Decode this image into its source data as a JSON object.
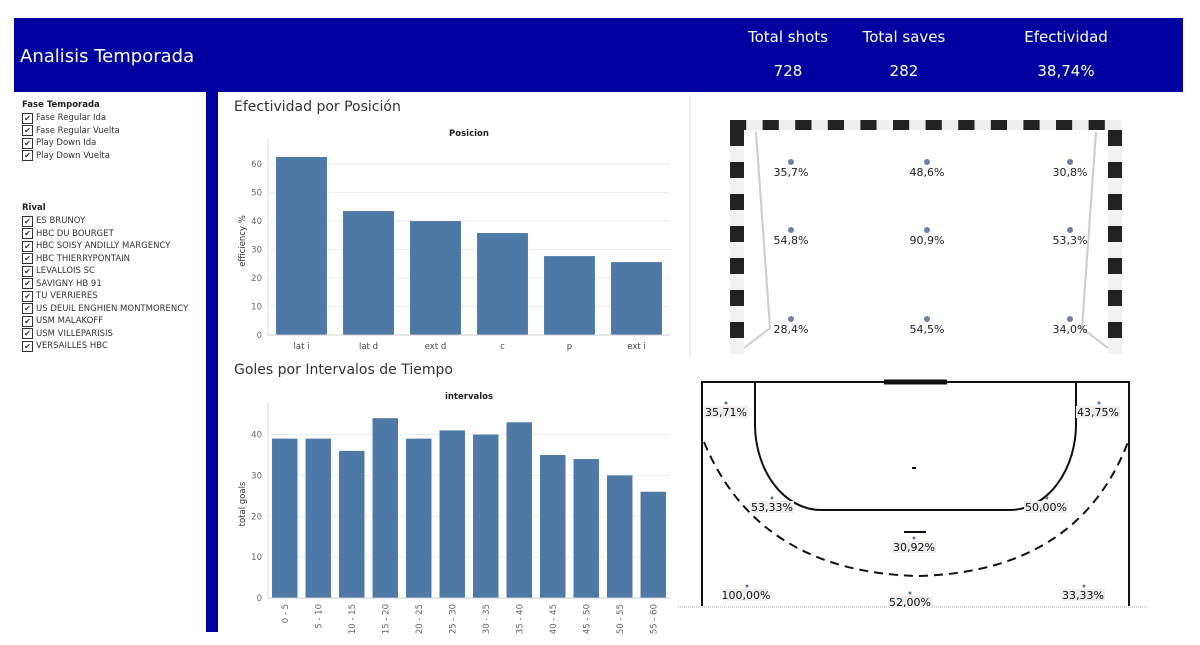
{
  "header": {
    "title": "Analisis Temporada",
    "kpis": [
      {
        "label": "Total shots",
        "value": "728"
      },
      {
        "label": "Total saves",
        "value": "282"
      },
      {
        "label": "Efectividad",
        "value": "38,74%"
      }
    ]
  },
  "filters": [
    {
      "title": "Fase Temporada",
      "items": [
        "Fase Regular Ida",
        "Fase Regular Vuelta",
        "Play Down Ida",
        "Play Down Vuelta"
      ]
    },
    {
      "title": "Rival",
      "items": [
        "ES BRUNOY",
        "HBC DU BOURGET",
        "HBC SOISY  ANDILLY  MARGENCY",
        "HBC THIERRYPONTAIN",
        "LEVALLOIS SC",
        "SAVIGNY HB 91",
        "TU VERRIERES",
        "US DEUIL ENGHIEN MONTMORENCY",
        "USM MALAKOFF",
        "USM VILLEPARISIS",
        "VERSAILLES HBC"
      ]
    }
  ],
  "chart_data": [
    {
      "type": "bar",
      "title": "Efectividad por Posición",
      "subtitle": "Posicion",
      "y_label": "efficiency %",
      "categories": [
        "lat i",
        "lat d",
        "ext d",
        "c",
        "p",
        "ext i"
      ],
      "values": [
        62.5,
        43.5,
        40,
        35.8,
        27.7,
        25.6
      ],
      "color": "#4e79a7",
      "ylim": [
        0,
        66
      ],
      "yticks": [
        0,
        10,
        20,
        30,
        40,
        50,
        60
      ],
      "grid": true,
      "rotate_labels": false
    },
    {
      "type": "bar",
      "title": "Goles por Intervalos de Tiempo",
      "subtitle": "intervalos",
      "y_label": "total goals",
      "categories": [
        "0 - 5",
        "5 - 10",
        "10 - 15",
        "15 - 20",
        "20 - 25",
        "25 - 30",
        "30 - 35",
        "35 - 40",
        "40 - 45",
        "45 - 50",
        "50 - 55",
        "55 - 60"
      ],
      "values": [
        39,
        39,
        36,
        44,
        39,
        41,
        40,
        43,
        35,
        34,
        30,
        26
      ],
      "color": "#4e79a7",
      "ylim": [
        0,
        46
      ],
      "yticks": [
        0,
        10,
        20,
        30,
        40
      ],
      "grid": true,
      "rotate_labels": true
    }
  ],
  "goal_zones": [
    "35,7%",
    "48,6%",
    "30,8%",
    "54,8%",
    "90,9%",
    "53,3%",
    "28,4%",
    "54,5%",
    "34,0%"
  ],
  "court_zones": [
    "35,71%",
    "43,75%",
    "53,33%",
    "50,00%",
    "30,92%",
    "100,00%",
    "52,00%",
    "33,33%"
  ]
}
